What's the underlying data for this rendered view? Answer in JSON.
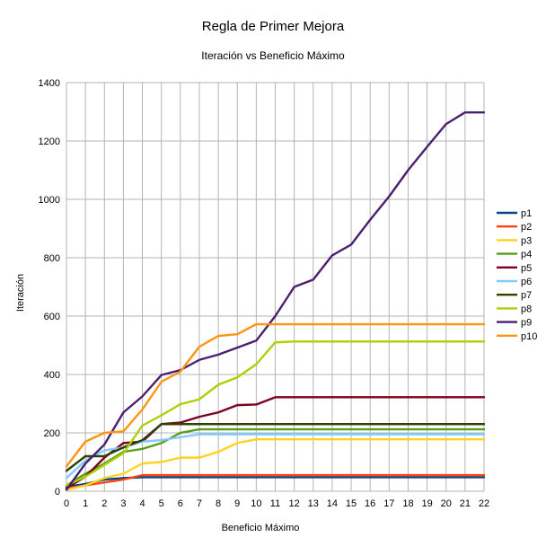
{
  "chart_data": {
    "type": "line",
    "title": "Regla de Primer Mejora",
    "subtitle": "Iteración vs Beneficio Máximo",
    "xlabel": "Beneficio Máximo",
    "ylabel": "Iteración",
    "x": [
      0,
      1,
      2,
      3,
      4,
      5,
      6,
      7,
      8,
      9,
      10,
      11,
      12,
      13,
      14,
      15,
      16,
      17,
      18,
      19,
      20,
      21,
      22
    ],
    "xlim": [
      0,
      22
    ],
    "ylim": [
      0,
      1400
    ],
    "yticks": [
      0,
      200,
      400,
      600,
      800,
      1000,
      1200,
      1400
    ],
    "grid": true,
    "legend_position": "right",
    "series": [
      {
        "name": "p1",
        "color": "#004586",
        "values": [
          15,
          25,
          40,
          45,
          48,
          48,
          48,
          48,
          48,
          48,
          48,
          48,
          48,
          48,
          48,
          48,
          48,
          48,
          48,
          48,
          48,
          48,
          48
        ]
      },
      {
        "name": "p2",
        "color": "#ff420e",
        "values": [
          10,
          20,
          30,
          40,
          55,
          55,
          55,
          55,
          55,
          55,
          55,
          55,
          55,
          55,
          55,
          55,
          55,
          55,
          55,
          55,
          55,
          55,
          55
        ]
      },
      {
        "name": "p3",
        "color": "#ffd320",
        "values": [
          5,
          20,
          45,
          60,
          95,
          100,
          115,
          115,
          135,
          165,
          178,
          178,
          178,
          178,
          178,
          178,
          178,
          178,
          178,
          178,
          178,
          178,
          178
        ]
      },
      {
        "name": "p4",
        "color": "#579d1c",
        "values": [
          20,
          60,
          95,
          135,
          145,
          165,
          200,
          212,
          212,
          212,
          212,
          212,
          212,
          212,
          212,
          212,
          212,
          212,
          212,
          212,
          212,
          212,
          212
        ]
      },
      {
        "name": "p5",
        "color": "#7e0021",
        "values": [
          10,
          50,
          115,
          165,
          170,
          230,
          235,
          255,
          270,
          295,
          297,
          322,
          322,
          322,
          322,
          322,
          322,
          322,
          322,
          322,
          322,
          322,
          322
        ]
      },
      {
        "name": "p6",
        "color": "#83caff",
        "values": [
          45,
          105,
          140,
          150,
          170,
          175,
          185,
          195,
          195,
          195,
          195,
          195,
          195,
          195,
          195,
          195,
          195,
          195,
          195,
          195,
          195,
          195,
          195
        ]
      },
      {
        "name": "p7",
        "color": "#314004",
        "values": [
          70,
          120,
          120,
          150,
          175,
          230,
          230,
          230,
          230,
          230,
          230,
          230,
          230,
          230,
          230,
          230,
          230,
          230,
          230,
          230,
          230,
          230,
          230
        ]
      },
      {
        "name": "p8",
        "color": "#aecf00",
        "values": [
          20,
          50,
          90,
          130,
          225,
          260,
          298,
          315,
          365,
          390,
          435,
          510,
          513,
          513,
          513,
          513,
          513,
          513,
          513,
          513,
          513,
          513,
          513
        ]
      },
      {
        "name": "p9",
        "color": "#4b1f6f",
        "values": [
          5,
          95,
          160,
          270,
          325,
          398,
          415,
          450,
          468,
          492,
          516,
          600,
          700,
          725,
          808,
          845,
          930,
          1010,
          1100,
          1180,
          1258,
          1298,
          1298
        ]
      },
      {
        "name": "p10",
        "color": "#ff950e",
        "values": [
          85,
          170,
          200,
          205,
          280,
          375,
          410,
          495,
          532,
          538,
          572,
          572,
          572,
          572,
          572,
          572,
          572,
          572,
          572,
          572,
          572,
          572,
          572
        ]
      }
    ]
  }
}
